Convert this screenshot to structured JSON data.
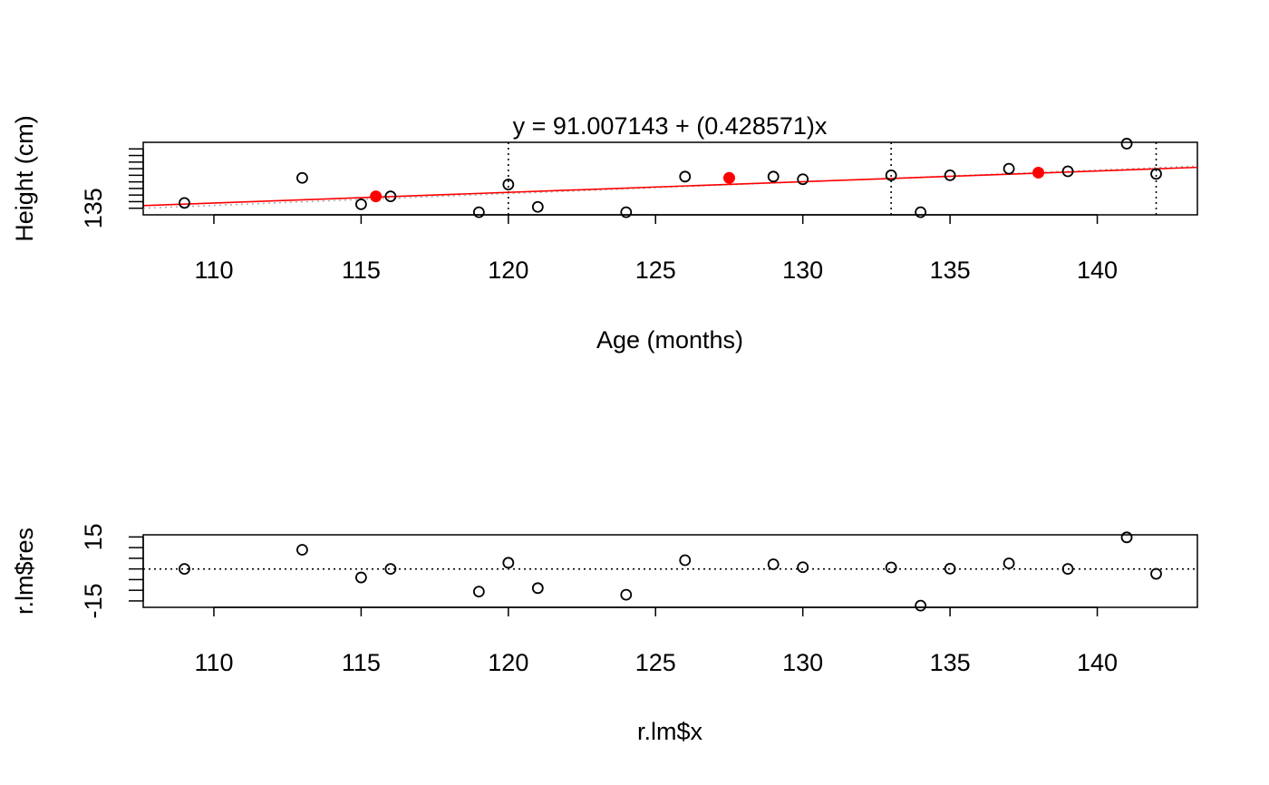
{
  "chart_data": [
    {
      "type": "scatter",
      "title": "y = 91.007143 + (0.428571)x",
      "xlabel": "Age (months)",
      "ylabel": "Height (cm)",
      "xlim": [
        107.6,
        143.4
      ],
      "ylim": [
        134.5,
        140.0
      ],
      "x_ticks": [
        "110",
        "115",
        "120",
        "125",
        "130",
        "135",
        "140"
      ],
      "y_tick_labels": [
        "135"
      ],
      "y_tick_values": [
        135,
        135.5,
        136,
        136.5,
        137,
        137.5,
        138,
        138.5,
        139,
        139.5
      ],
      "points": {
        "x": [
          109,
          113,
          115,
          116,
          119,
          120,
          121,
          124,
          126,
          129,
          130,
          133,
          134,
          135,
          137,
          139,
          141,
          142
        ],
        "y": [
          135.4,
          137.3,
          135.3,
          135.9,
          134.7,
          136.8,
          135.1,
          134.7,
          137.4,
          137.4,
          137.2,
          137.5,
          134.7,
          137.5,
          138.0,
          137.8,
          139.9,
          137.6
        ]
      },
      "highlight_points": {
        "color": "#ff0000",
        "x": [
          115.5,
          127.5,
          138.0
        ],
        "y": [
          135.9,
          137.3,
          137.7
        ]
      },
      "fit_line": {
        "color": "#ff0000",
        "intercept": 91.007143,
        "slope": 0.428571,
        "x_range": [
          107.6,
          143.4
        ],
        "y_range": [
          135.2,
          138.1
        ]
      },
      "reference_line": {
        "style": "dotted",
        "color": "#aaaaaa",
        "x": [
          107.6,
          143.4
        ],
        "y": [
          135.0,
          138.2
        ]
      },
      "vlines": {
        "style": "dotted",
        "x": [
          120,
          133,
          142
        ]
      }
    },
    {
      "type": "scatter",
      "title": "",
      "xlabel": "r.lm$x",
      "ylabel": "r.lm$res",
      "xlim": [
        107.6,
        143.4
      ],
      "ylim": [
        -18.0,
        16.0
      ],
      "x_ticks": [
        "110",
        "115",
        "120",
        "125",
        "130",
        "135",
        "140"
      ],
      "y_tick_labels": [
        "-15",
        "15"
      ],
      "y_tick_values": [
        -15,
        -10,
        -5,
        0,
        5,
        10,
        15
      ],
      "points": {
        "x": [
          109,
          113,
          115,
          116,
          119,
          120,
          121,
          124,
          126,
          129,
          130,
          133,
          134,
          135,
          137,
          139,
          141,
          142
        ],
        "y": [
          0.0,
          9.0,
          -4.0,
          0.0,
          -10.6,
          2.9,
          -9.0,
          -12.1,
          4.1,
          2.2,
          0.8,
          0.7,
          -17.2,
          0.1,
          2.6,
          0.0,
          14.8,
          -2.3
        ]
      },
      "hline": {
        "y": 0,
        "style": "dotted"
      }
    }
  ]
}
